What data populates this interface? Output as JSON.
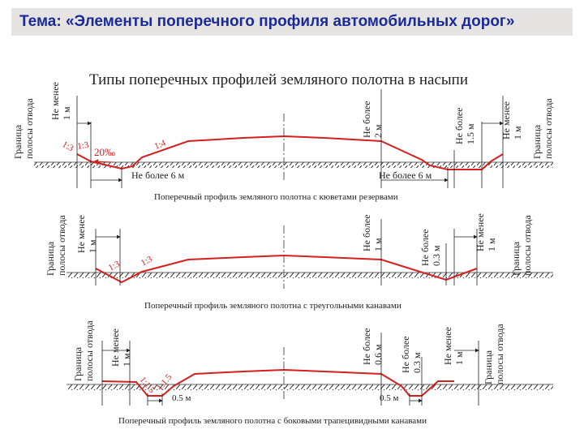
{
  "header": {
    "title": "Тема: «Элементы поперечного профиля автомобильных дорог»"
  },
  "figure": {
    "heading": "Типы поперечных профилей земляного полотна в насыпи"
  },
  "profile1": {
    "boundary_line1": "Граница",
    "boundary_line2": "полосы отвода",
    "not_less": "Не менее",
    "one_m": "1 м",
    "not_more": "Не более",
    "two_m": "2 м",
    "one_five_m": "1.5 м",
    "slope_1_3": "1:3",
    "slope_1_4": "1:4",
    "grade_20": "20‰",
    "dim_left": "Не более 6 м",
    "dim_right": "Не более 6 м",
    "caption": "Поперечный профиль земляного полотна с кюветами резервами"
  },
  "profile2": {
    "boundary_line1": "Граница",
    "boundary_line2": "полосы отвода",
    "not_less": "Не менее",
    "one_m": "1 м",
    "not_more": "Не более",
    "zero_three_m": "0.3 м",
    "slope_1_3": "1:3",
    "caption": "Поперечный профиль земляного полотна с треугольными канавами"
  },
  "profile3": {
    "boundary_line1": "Граница",
    "boundary_line2": "полосы отвода",
    "not_less": "Не менее",
    "one_m": "1 м",
    "not_more": "Не более",
    "zero_six_m": "0.6 м",
    "zero_three_m": "0.3 м",
    "slope_1_1_5": "1:1.5",
    "dim_left": "0.5 м",
    "dim_right": "0.5 м",
    "caption": "Поперечный профиль земляного полотна с боковыми трапецивидными канавами"
  },
  "colors": {
    "title": "#1a2a99",
    "title_bg": "#e6e4e2",
    "profile": "#d42020",
    "ink": "#222222"
  }
}
